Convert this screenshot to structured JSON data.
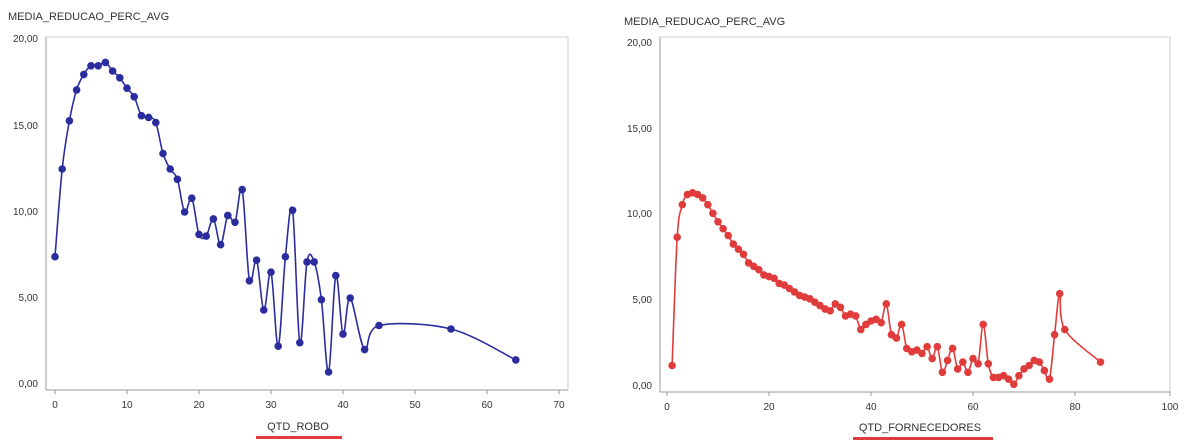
{
  "chart_data": [
    {
      "type": "line",
      "ylabel": "MEDIA_REDUCAO_PERC_AVG",
      "xlabel": "QTD_ROBO",
      "xlim": [
        0,
        70
      ],
      "ylim": [
        0,
        20
      ],
      "xticks": [
        "0",
        "10",
        "20",
        "30",
        "40",
        "50",
        "60",
        "70"
      ],
      "yticks": [
        "0,00",
        "5,00",
        "10,00",
        "15,00",
        "20,00"
      ],
      "color": "#2b2d9e",
      "underline_color": "#e03c3c",
      "series": [
        {
          "x": [
            0,
            1,
            2,
            3,
            4,
            5,
            6,
            7,
            8,
            9,
            10,
            11,
            12,
            13,
            14,
            15,
            16,
            17,
            18,
            19,
            20,
            21,
            22,
            23,
            24,
            25,
            26,
            27,
            28,
            29,
            30,
            31,
            32,
            33,
            34,
            35,
            36,
            37,
            38,
            39,
            40,
            41,
            43,
            45,
            55,
            64
          ],
          "y": [
            7.4,
            12.5,
            15.3,
            17.1,
            18.0,
            18.5,
            18.5,
            18.7,
            18.2,
            17.8,
            17.2,
            16.7,
            15.6,
            15.5,
            15.2,
            13.4,
            12.5,
            11.9,
            10.0,
            10.8,
            8.7,
            8.6,
            9.6,
            8.1,
            9.8,
            9.4,
            11.3,
            6.0,
            7.2,
            4.3,
            6.5,
            2.2,
            7.4,
            10.1,
            2.4,
            7.1,
            7.1,
            4.9,
            0.7,
            6.3,
            2.9,
            5.0,
            2.0,
            3.4,
            3.2,
            1.4
          ]
        }
      ]
    },
    {
      "type": "line",
      "ylabel": "MEDIA_REDUCAO_PERC_AVG",
      "xlabel": "QTD_FORNECEDORES",
      "xlim": [
        0,
        100
      ],
      "ylim": [
        0,
        20
      ],
      "xticks": [
        "0",
        "20",
        "40",
        "60",
        "80",
        "100"
      ],
      "yticks": [
        "0,00",
        "5,00",
        "10,00",
        "15,00",
        "20,00"
      ],
      "color": "#e03c3c",
      "underline_color": "#e03c3c",
      "series": [
        {
          "x": [
            1,
            2,
            3,
            4,
            5,
            6,
            7,
            8,
            9,
            10,
            11,
            12,
            13,
            14,
            15,
            16,
            17,
            18,
            19,
            20,
            21,
            22,
            23,
            24,
            25,
            26,
            27,
            28,
            29,
            30,
            31,
            32,
            33,
            34,
            35,
            36,
            37,
            38,
            39,
            40,
            41,
            42,
            43,
            44,
            45,
            46,
            47,
            48,
            49,
            50,
            51,
            52,
            53,
            54,
            55,
            56,
            57,
            58,
            59,
            60,
            61,
            62,
            63,
            64,
            65,
            66,
            67,
            68,
            69,
            70,
            71,
            72,
            73,
            74,
            75,
            76,
            77,
            78,
            85
          ],
          "y": [
            1.2,
            8.7,
            10.6,
            11.2,
            11.3,
            11.2,
            11.0,
            10.6,
            10.1,
            9.6,
            9.2,
            8.8,
            8.3,
            8.0,
            7.7,
            7.2,
            7.0,
            6.8,
            6.5,
            6.4,
            6.3,
            6.0,
            5.9,
            5.7,
            5.5,
            5.3,
            5.2,
            5.1,
            4.9,
            4.7,
            4.5,
            4.4,
            4.8,
            4.6,
            4.1,
            4.2,
            4.1,
            3.3,
            3.6,
            3.8,
            3.9,
            3.7,
            4.8,
            3.0,
            2.8,
            3.6,
            2.2,
            2.0,
            2.1,
            1.9,
            2.3,
            1.6,
            2.3,
            0.8,
            1.5,
            2.2,
            1.0,
            1.4,
            0.8,
            1.6,
            1.3,
            3.6,
            1.3,
            0.5,
            0.5,
            0.6,
            0.4,
            0.1,
            0.6,
            1.0,
            1.2,
            1.5,
            1.4,
            0.9,
            0.4,
            3.0,
            5.4,
            3.3,
            1.4
          ]
        }
      ]
    }
  ]
}
